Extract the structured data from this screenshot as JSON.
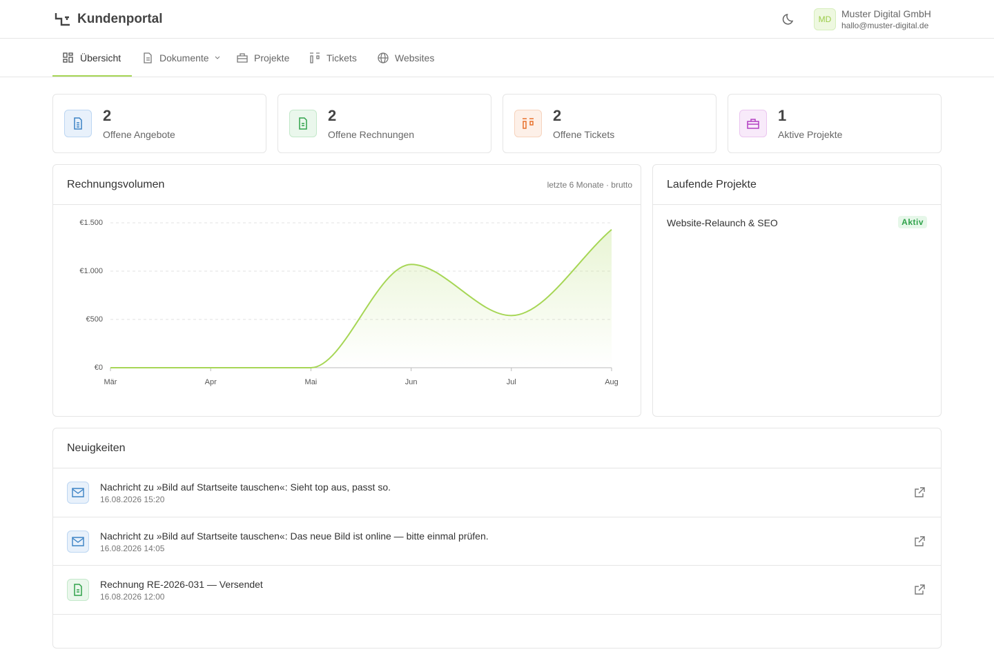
{
  "header": {
    "brand": "Kundenportal",
    "avatar": "MD",
    "company": "Muster Digital GmbH",
    "email": "hallo@muster-digital.de"
  },
  "nav": [
    "Übersicht",
    "Dokumente",
    "Projekte",
    "Tickets",
    "Websites"
  ],
  "stats": [
    {
      "value": 2,
      "label": "Offene Angebote"
    },
    {
      "value": 2,
      "label": "Offene Rechnungen"
    },
    {
      "value": 2,
      "label": "Offene Tickets"
    },
    {
      "value": 1,
      "label": "Aktive Projekte"
    }
  ],
  "chart_data": {
    "type": "line",
    "title": "Rechnungsvolumen",
    "subtitle": "letzte 6 Monate · brutto",
    "categories": [
      "Mär",
      "Apr",
      "Mai",
      "Jun",
      "Jul",
      "Aug"
    ],
    "values": [
      0,
      0,
      0,
      1070,
      540,
      1430
    ],
    "color": "#a6d655",
    "ylim": [
      0,
      1500
    ],
    "yticks": [
      {
        "value": 0,
        "label": "€0"
      },
      {
        "value": 500,
        "label": "€500"
      },
      {
        "value": 1000,
        "label": "€1.000"
      },
      {
        "value": 1500,
        "label": "€1.500"
      }
    ],
    "grid": true
  },
  "projects": {
    "title": "Laufende Projekte",
    "items": [
      {
        "name": "Website-Relaunch & SEO",
        "status": "Aktiv"
      }
    ]
  },
  "news": {
    "title": "Neuigkeiten",
    "items": [
      {
        "text": "Nachricht zu »Bild auf Startseite tauschen«: Sieht top aus, passt so.",
        "date": "16.08.2026 15:20"
      },
      {
        "text": "Nachricht zu »Bild auf Startseite tauschen«: Das neue Bild ist online — bitte einmal prüfen.",
        "date": "16.08.2026 14:05"
      },
      {
        "text": "Rechnung RE-2026-031 — Versendet",
        "date": "16.08.2026 12:00"
      }
    ]
  }
}
